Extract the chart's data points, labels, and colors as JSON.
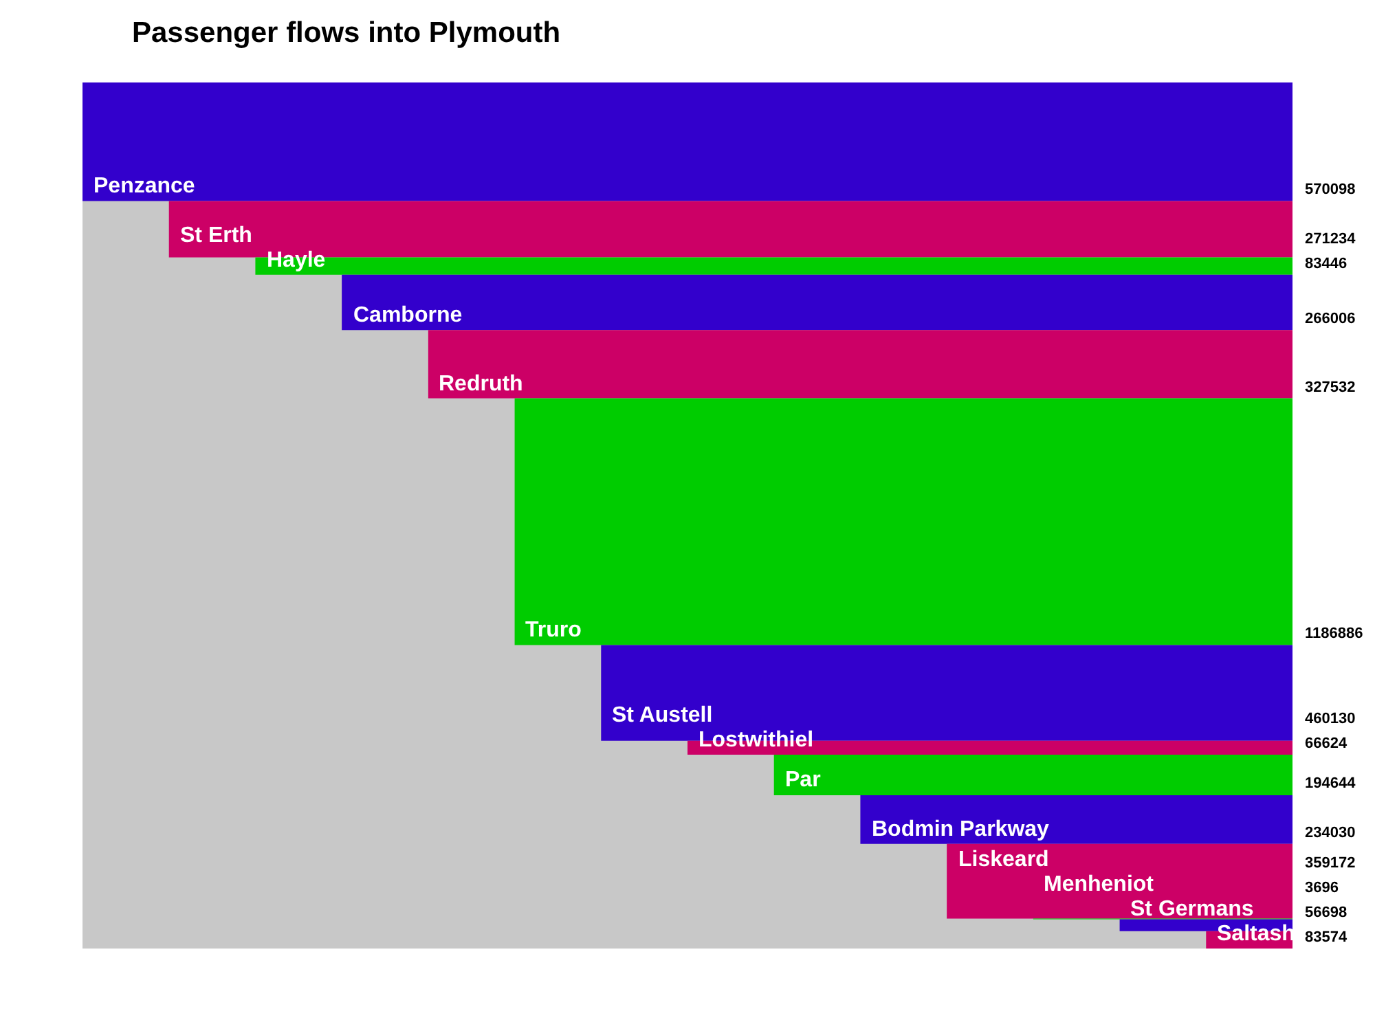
{
  "chart_data": {
    "type": "other",
    "title": "Passenger flows into Plymouth",
    "categories": [
      "Penzance",
      "St Erth",
      "Hayle",
      "Camborne",
      "Redruth",
      "Truro",
      "St Austell",
      "Lostwithiel",
      "Par",
      "Bodmin Parkway",
      "Liskeard",
      "Menheniot",
      "St Germans",
      "Saltash"
    ],
    "values": [
      570098,
      271234,
      83446,
      266006,
      327532,
      1186886,
      460130,
      66624,
      194644,
      234030,
      359172,
      3696,
      56698,
      83574
    ],
    "colors": [
      "#3300cc",
      "#cc0066",
      "#00cc00",
      "#3300cc",
      "#cc0066",
      "#00cc00",
      "#3300cc",
      "#cc0066",
      "#00cc00",
      "#3300cc",
      "#cc0066",
      "#00cc00",
      "#3300cc",
      "#cc0066"
    ],
    "data_labels": true
  }
}
